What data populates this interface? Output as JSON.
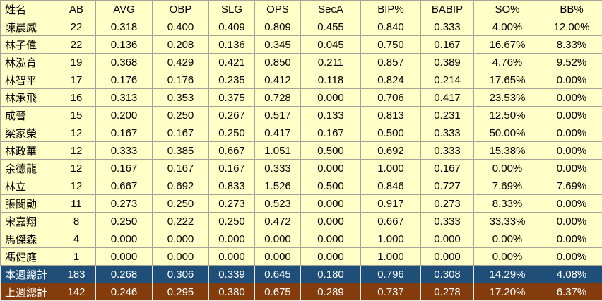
{
  "colors": {
    "cell_background": "#FFFFC8",
    "grid_line": "#A6A398",
    "week_total_background": "#1F4E79",
    "prev_total_background": "#843C0C",
    "body_text": "#000000",
    "total_text": "#FFFFFF"
  },
  "chart_data": {
    "type": "table",
    "columns": [
      "姓名",
      "AB",
      "AVG",
      "OBP",
      "SLG",
      "OPS",
      "SecA",
      "BIP%",
      "BABIP",
      "SO%",
      "BB%"
    ],
    "rows": [
      [
        "陳晨威",
        "22",
        "0.318",
        "0.400",
        "0.409",
        "0.809",
        "0.455",
        "0.840",
        "0.333",
        "4.00%",
        "12.00%"
      ],
      [
        "林子偉",
        "22",
        "0.136",
        "0.208",
        "0.136",
        "0.345",
        "0.045",
        "0.750",
        "0.167",
        "16.67%",
        "8.33%"
      ],
      [
        "林泓育",
        "19",
        "0.368",
        "0.429",
        "0.421",
        "0.850",
        "0.211",
        "0.857",
        "0.389",
        "4.76%",
        "9.52%"
      ],
      [
        "林智平",
        "17",
        "0.176",
        "0.176",
        "0.235",
        "0.412",
        "0.118",
        "0.824",
        "0.214",
        "17.65%",
        "0.00%"
      ],
      [
        "林承飛",
        "16",
        "0.313",
        "0.353",
        "0.375",
        "0.728",
        "0.000",
        "0.706",
        "0.417",
        "23.53%",
        "0.00%"
      ],
      [
        "成晉",
        "15",
        "0.200",
        "0.250",
        "0.267",
        "0.517",
        "0.133",
        "0.813",
        "0.231",
        "12.50%",
        "0.00%"
      ],
      [
        "梁家榮",
        "12",
        "0.167",
        "0.167",
        "0.250",
        "0.417",
        "0.167",
        "0.500",
        "0.333",
        "50.00%",
        "0.00%"
      ],
      [
        "林政華",
        "12",
        "0.333",
        "0.385",
        "0.667",
        "1.051",
        "0.500",
        "0.692",
        "0.333",
        "15.38%",
        "0.00%"
      ],
      [
        "余德龍",
        "12",
        "0.167",
        "0.167",
        "0.167",
        "0.333",
        "0.000",
        "1.000",
        "0.167",
        "0.00%",
        "0.00%"
      ],
      [
        "林立",
        "12",
        "0.667",
        "0.692",
        "0.833",
        "1.526",
        "0.500",
        "0.846",
        "0.727",
        "7.69%",
        "7.69%"
      ],
      [
        "張閔勛",
        "11",
        "0.273",
        "0.250",
        "0.273",
        "0.523",
        "0.000",
        "0.917",
        "0.273",
        "8.33%",
        "0.00%"
      ],
      [
        "宋嘉翔",
        "8",
        "0.250",
        "0.222",
        "0.250",
        "0.472",
        "0.000",
        "0.667",
        "0.333",
        "33.33%",
        "0.00%"
      ],
      [
        "馬傑森",
        "4",
        "0.000",
        "0.000",
        "0.000",
        "0.000",
        "0.000",
        "1.000",
        "0.000",
        "0.00%",
        "0.00%"
      ],
      [
        "馮健庭",
        "1",
        "0.000",
        "0.000",
        "0.000",
        "0.000",
        "0.000",
        "1.000",
        "0.000",
        "0.00%",
        "0.00%"
      ]
    ],
    "totals": [
      [
        "本週總計",
        "183",
        "0.268",
        "0.306",
        "0.339",
        "0.645",
        "0.180",
        "0.796",
        "0.308",
        "14.29%",
        "4.08%"
      ],
      [
        "上週總計",
        "142",
        "0.246",
        "0.295",
        "0.380",
        "0.675",
        "0.289",
        "0.737",
        "0.278",
        "17.20%",
        "6.37%"
      ]
    ]
  }
}
